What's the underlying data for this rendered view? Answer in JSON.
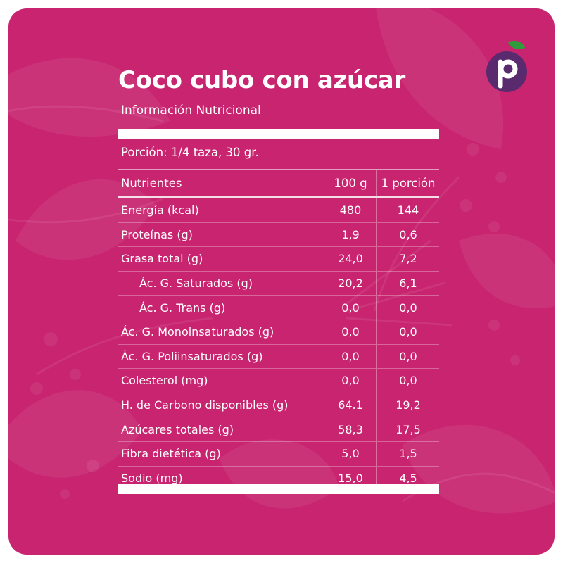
{
  "title": "Coco cubo con azúcar",
  "subtitle": "Información Nutricional",
  "portion": "Porción: 1/4 taza, 30 gr.",
  "columns": {
    "nutrient": "Nutrientes",
    "per100": "100 g",
    "perPortion": "1 porción"
  },
  "rows": [
    {
      "name": "Energía (kcal)",
      "per100": "480",
      "perPortion": "144"
    },
    {
      "name": "Proteínas (g)",
      "per100": "1,9",
      "perPortion": "0,6"
    },
    {
      "name": "Grasa total (g)",
      "per100": "24,0",
      "perPortion": "7,2"
    },
    {
      "name": "Ác. G. Saturados (g)",
      "per100": "20,2",
      "perPortion": "6,1"
    },
    {
      "name": "Ác. G. Trans (g)",
      "per100": "0,0",
      "perPortion": "0,0"
    },
    {
      "name": "Ác. G. Monoinsaturados (g)",
      "per100": "0,0",
      "perPortion": "0,0"
    },
    {
      "name": "Ác. G. Poliinsaturados (g)",
      "per100": "0,0",
      "perPortion": "0,0"
    },
    {
      "name": "Colesterol (mg)",
      "per100": "0,0",
      "perPortion": "0,0"
    },
    {
      "name": "H. de Carbono disponibles (g)",
      "per100": "64.1",
      "perPortion": "19,2"
    },
    {
      "name": "Azúcares totales (g)",
      "per100": "58,3",
      "perPortion": "17,5"
    },
    {
      "name": "Fibra dietética (g)",
      "per100": "5,0",
      "perPortion": "1,5"
    },
    {
      "name": "Sodio (mg)",
      "per100": "15,0",
      "perPortion": "4,5"
    }
  ],
  "logo": {
    "letter": "p",
    "icon": "plum-logo-icon"
  },
  "colors": {
    "background": "#c8246f",
    "logoPurple": "#5a2a6e",
    "logoLeaf": "#2f9e3a",
    "text": "#ffffff"
  }
}
